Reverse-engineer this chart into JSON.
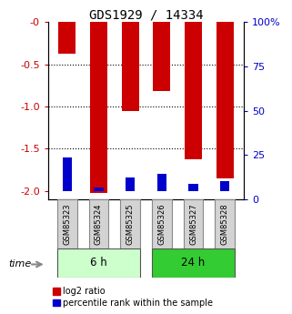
{
  "title": "GDS1929 / 14334",
  "categories": [
    "GSM85323",
    "GSM85324",
    "GSM85325",
    "GSM85326",
    "GSM85327",
    "GSM85328"
  ],
  "log2_ratio": [
    -0.38,
    -2.02,
    -1.05,
    -0.82,
    -1.63,
    -1.85
  ],
  "percentile_rank": [
    20.0,
    2.0,
    8.0,
    10.0,
    4.0,
    6.0
  ],
  "groups": [
    {
      "label": "6 h",
      "indices": [
        0,
        1,
        2
      ],
      "color": "#ccffcc"
    },
    {
      "label": "24 h",
      "indices": [
        3,
        4,
        5
      ],
      "color": "#33cc33"
    }
  ],
  "ylim_left": [
    -2.1,
    0.0
  ],
  "ylim_right": [
    0,
    100
  ],
  "yticks_left": [
    0,
    -0.5,
    -1.0,
    -1.5,
    -2.0
  ],
  "yticks_right": [
    0,
    25,
    50,
    75,
    100
  ],
  "bar_width": 0.55,
  "bar_color_red": "#cc0000",
  "bar_color_blue": "#0000cc",
  "tick_label_color_left": "#cc0000",
  "tick_label_color_right": "#0000cc",
  "bg_color": "#ffffff",
  "plot_bg": "#ffffff",
  "legend_red_label": "log2 ratio",
  "legend_blue_label": "percentile rank within the sample",
  "time_label": "time",
  "xlabel_gray_bg": "#d3d3d3"
}
